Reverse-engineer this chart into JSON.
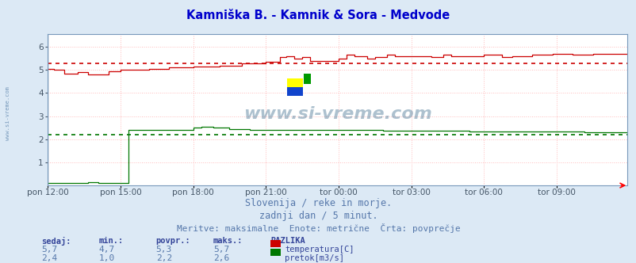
{
  "title": "Kamniška B. - Kamnik & Sora - Medvode",
  "title_color": "#0000cc",
  "bg_color": "#dce9f5",
  "plot_bg_color": "#ffffff",
  "plot_border_color": "#7799bb",
  "grid_color": "#ffbbbb",
  "grid_color_minor": "#ffdddd",
  "x_ticks_labels": [
    "pon 12:00",
    "pon 15:00",
    "pon 18:00",
    "pon 21:00",
    "tor 00:00",
    "tor 03:00",
    "tor 06:00",
    "tor 09:00"
  ],
  "x_ticks_pos": [
    0,
    36,
    72,
    108,
    144,
    180,
    216,
    252
  ],
  "n_points": 288,
  "ylim": [
    0.0,
    6.55
  ],
  "yticks": [
    1,
    2,
    3,
    4,
    5,
    6
  ],
  "temp_avg": 5.3,
  "flow_avg": 2.2,
  "temp_color": "#cc0000",
  "flow_color": "#007700",
  "watermark_text": "www.si-vreme.com",
  "watermark_color": "#336688",
  "logo_colors": [
    "#ffff00",
    "#0044cc",
    "#00cc00"
  ],
  "subtitle1": "Slovenija / reke in morje.",
  "subtitle2": "zadnji dan / 5 minut.",
  "subtitle3": "Meritve: maksimalne  Enote: metrične  Črta: povprečje",
  "subtitle_color": "#5577aa",
  "table_header": [
    "sedaj:",
    "min.:",
    "povpr.:",
    "maks.:",
    "RAZLIKA"
  ],
  "table_color": "#5577aa",
  "table_bold_color": "#334499",
  "row1": [
    "5,7",
    "4,7",
    "5,3",
    "5,7"
  ],
  "row2": [
    "2,4",
    "1,0",
    "2,2",
    "2,6"
  ],
  "legend1": "temperatura[C]",
  "legend2": "pretok[m3/s]",
  "left_label": "www.si-vreme.com"
}
